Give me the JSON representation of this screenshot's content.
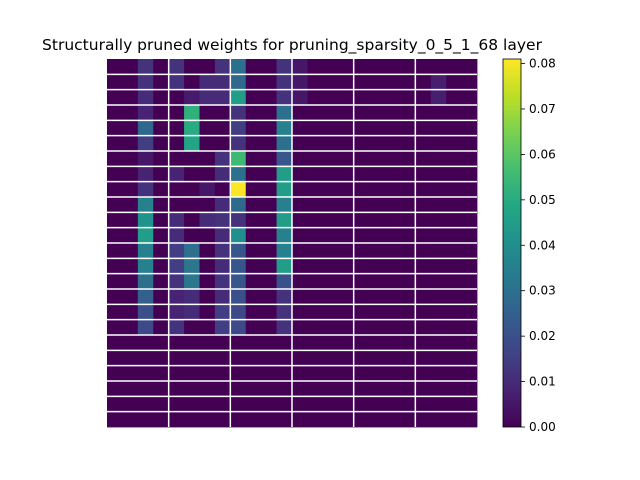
{
  "chart_data": {
    "type": "heatmap",
    "title": "Structurally pruned weights for pruning_sparsity_0_5_1_68 layer",
    "xlabel": "",
    "ylabel": "",
    "grid": true,
    "rows": 24,
    "cols": 24,
    "colormap": "viridis",
    "vmin": 0.0,
    "vmax": 0.081,
    "colorbar_ticks": [
      "0.00",
      "0.01",
      "0.02",
      "0.03",
      "0.04",
      "0.05",
      "0.06",
      "0.07",
      "0.08"
    ],
    "values": [
      [
        0.0,
        0.0,
        0.012,
        0.0,
        0.012,
        0.0,
        0.0,
        0.012,
        0.03,
        0.0,
        0.0,
        0.012,
        0.005,
        0.0,
        0.0,
        0.0,
        0.0,
        0.0,
        0.0,
        0.0,
        0.0,
        0.0,
        0.0,
        0.0
      ],
      [
        0.0,
        0.0,
        0.012,
        0.0,
        0.012,
        0.0,
        0.01,
        0.01,
        0.028,
        0.0,
        0.0,
        0.012,
        0.005,
        0.0,
        0.0,
        0.0,
        0.0,
        0.0,
        0.0,
        0.0,
        0.0,
        0.007,
        0.0,
        0.0
      ],
      [
        0.0,
        0.0,
        0.01,
        0.0,
        0.0,
        0.006,
        0.01,
        0.01,
        0.045,
        0.0,
        0.0,
        0.012,
        0.005,
        0.0,
        0.0,
        0.0,
        0.0,
        0.0,
        0.0,
        0.0,
        0.0,
        0.007,
        0.0,
        0.0
      ],
      [
        0.0,
        0.0,
        0.008,
        0.0,
        0.0,
        0.052,
        0.0,
        0.0,
        0.012,
        0.0,
        0.0,
        0.03,
        0.0,
        0.0,
        0.0,
        0.0,
        0.0,
        0.0,
        0.0,
        0.0,
        0.0,
        0.0,
        0.0,
        0.0
      ],
      [
        0.0,
        0.0,
        0.027,
        0.0,
        0.0,
        0.05,
        0.0,
        0.0,
        0.015,
        0.0,
        0.0,
        0.035,
        0.0,
        0.0,
        0.0,
        0.0,
        0.0,
        0.0,
        0.0,
        0.0,
        0.0,
        0.0,
        0.0,
        0.0
      ],
      [
        0.0,
        0.0,
        0.015,
        0.0,
        0.0,
        0.048,
        0.0,
        0.0,
        0.012,
        0.0,
        0.0,
        0.03,
        0.0,
        0.0,
        0.0,
        0.0,
        0.0,
        0.0,
        0.0,
        0.0,
        0.0,
        0.0,
        0.0,
        0.0
      ],
      [
        0.0,
        0.0,
        0.005,
        0.0,
        0.0,
        0.0,
        0.0,
        0.012,
        0.055,
        0.0,
        0.0,
        0.022,
        0.0,
        0.0,
        0.0,
        0.0,
        0.0,
        0.0,
        0.0,
        0.0,
        0.0,
        0.0,
        0.0,
        0.0
      ],
      [
        0.0,
        0.0,
        0.008,
        0.0,
        0.008,
        0.0,
        0.0,
        0.01,
        0.03,
        0.0,
        0.0,
        0.045,
        0.0,
        0.0,
        0.0,
        0.0,
        0.0,
        0.0,
        0.0,
        0.0,
        0.0,
        0.0,
        0.0,
        0.0
      ],
      [
        0.0,
        0.0,
        0.012,
        0.0,
        0.0,
        0.0,
        0.005,
        0.0,
        0.081,
        0.0,
        0.0,
        0.045,
        0.0,
        0.0,
        0.0,
        0.0,
        0.0,
        0.0,
        0.0,
        0.0,
        0.0,
        0.0,
        0.0,
        0.0
      ],
      [
        0.0,
        0.0,
        0.035,
        0.0,
        0.0,
        0.0,
        0.0,
        0.01,
        0.028,
        0.0,
        0.0,
        0.035,
        0.0,
        0.0,
        0.0,
        0.0,
        0.0,
        0.0,
        0.0,
        0.0,
        0.0,
        0.0,
        0.0,
        0.0
      ],
      [
        0.0,
        0.0,
        0.042,
        0.0,
        0.01,
        0.0,
        0.01,
        0.012,
        0.012,
        0.0,
        0.0,
        0.045,
        0.0,
        0.0,
        0.0,
        0.0,
        0.0,
        0.0,
        0.0,
        0.0,
        0.0,
        0.0,
        0.0,
        0.0
      ],
      [
        0.0,
        0.0,
        0.045,
        0.0,
        0.01,
        0.0,
        0.0,
        0.01,
        0.04,
        0.0,
        0.0,
        0.035,
        0.0,
        0.0,
        0.0,
        0.0,
        0.0,
        0.0,
        0.0,
        0.0,
        0.0,
        0.0,
        0.0,
        0.0
      ],
      [
        0.0,
        0.0,
        0.035,
        0.0,
        0.015,
        0.03,
        0.0,
        0.012,
        0.022,
        0.0,
        0.0,
        0.035,
        0.0,
        0.0,
        0.0,
        0.0,
        0.0,
        0.0,
        0.0,
        0.0,
        0.0,
        0.0,
        0.0,
        0.0
      ],
      [
        0.0,
        0.0,
        0.035,
        0.0,
        0.015,
        0.032,
        0.0,
        0.01,
        0.022,
        0.0,
        0.0,
        0.045,
        0.0,
        0.0,
        0.0,
        0.0,
        0.0,
        0.0,
        0.0,
        0.0,
        0.0,
        0.0,
        0.0,
        0.0
      ],
      [
        0.0,
        0.0,
        0.03,
        0.0,
        0.012,
        0.032,
        0.0,
        0.012,
        0.022,
        0.0,
        0.0,
        0.02,
        0.0,
        0.0,
        0.0,
        0.0,
        0.0,
        0.0,
        0.0,
        0.0,
        0.0,
        0.0,
        0.0,
        0.0
      ],
      [
        0.0,
        0.0,
        0.025,
        0.0,
        0.008,
        0.01,
        0.0,
        0.01,
        0.02,
        0.0,
        0.0,
        0.012,
        0.0,
        0.0,
        0.0,
        0.0,
        0.0,
        0.0,
        0.0,
        0.0,
        0.0,
        0.0,
        0.0,
        0.0
      ],
      [
        0.0,
        0.0,
        0.02,
        0.0,
        0.008,
        0.01,
        0.0,
        0.015,
        0.018,
        0.0,
        0.0,
        0.012,
        0.0,
        0.0,
        0.0,
        0.0,
        0.0,
        0.0,
        0.0,
        0.0,
        0.0,
        0.0,
        0.0,
        0.0
      ],
      [
        0.0,
        0.0,
        0.018,
        0.0,
        0.012,
        0.0,
        0.0,
        0.015,
        0.018,
        0.0,
        0.0,
        0.012,
        0.0,
        0.0,
        0.0,
        0.0,
        0.0,
        0.0,
        0.0,
        0.0,
        0.0,
        0.0,
        0.0,
        0.0
      ],
      [
        0.0,
        0.0,
        0.0,
        0.0,
        0.0,
        0.0,
        0.0,
        0.0,
        0.0,
        0.0,
        0.0,
        0.0,
        0.0,
        0.0,
        0.0,
        0.0,
        0.0,
        0.0,
        0.0,
        0.0,
        0.0,
        0.0,
        0.0,
        0.0
      ],
      [
        0.0,
        0.0,
        0.0,
        0.0,
        0.0,
        0.0,
        0.0,
        0.0,
        0.0,
        0.0,
        0.0,
        0.0,
        0.0,
        0.0,
        0.0,
        0.0,
        0.0,
        0.0,
        0.0,
        0.0,
        0.0,
        0.0,
        0.0,
        0.0
      ],
      [
        0.0,
        0.0,
        0.0,
        0.0,
        0.0,
        0.0,
        0.0,
        0.0,
        0.0,
        0.0,
        0.0,
        0.0,
        0.0,
        0.0,
        0.0,
        0.0,
        0.0,
        0.0,
        0.0,
        0.0,
        0.0,
        0.0,
        0.0,
        0.0
      ],
      [
        0.0,
        0.0,
        0.0,
        0.0,
        0.0,
        0.0,
        0.0,
        0.0,
        0.0,
        0.0,
        0.0,
        0.0,
        0.0,
        0.0,
        0.0,
        0.0,
        0.0,
        0.0,
        0.0,
        0.0,
        0.0,
        0.0,
        0.0,
        0.0
      ],
      [
        0.0,
        0.0,
        0.0,
        0.0,
        0.0,
        0.0,
        0.0,
        0.0,
        0.0,
        0.0,
        0.0,
        0.0,
        0.0,
        0.0,
        0.0,
        0.0,
        0.0,
        0.0,
        0.0,
        0.0,
        0.0,
        0.0,
        0.0,
        0.0
      ],
      [
        0.0,
        0.0,
        0.0,
        0.0,
        0.0,
        0.0,
        0.0,
        0.0,
        0.0,
        0.0,
        0.0,
        0.0,
        0.0,
        0.0,
        0.0,
        0.0,
        0.0,
        0.0,
        0.0,
        0.0,
        0.0,
        0.0,
        0.0,
        0.0
      ]
    ],
    "grid_color": "#ffffff",
    "vertical_grid_every": 4,
    "horizontal_grid_every": 1
  }
}
